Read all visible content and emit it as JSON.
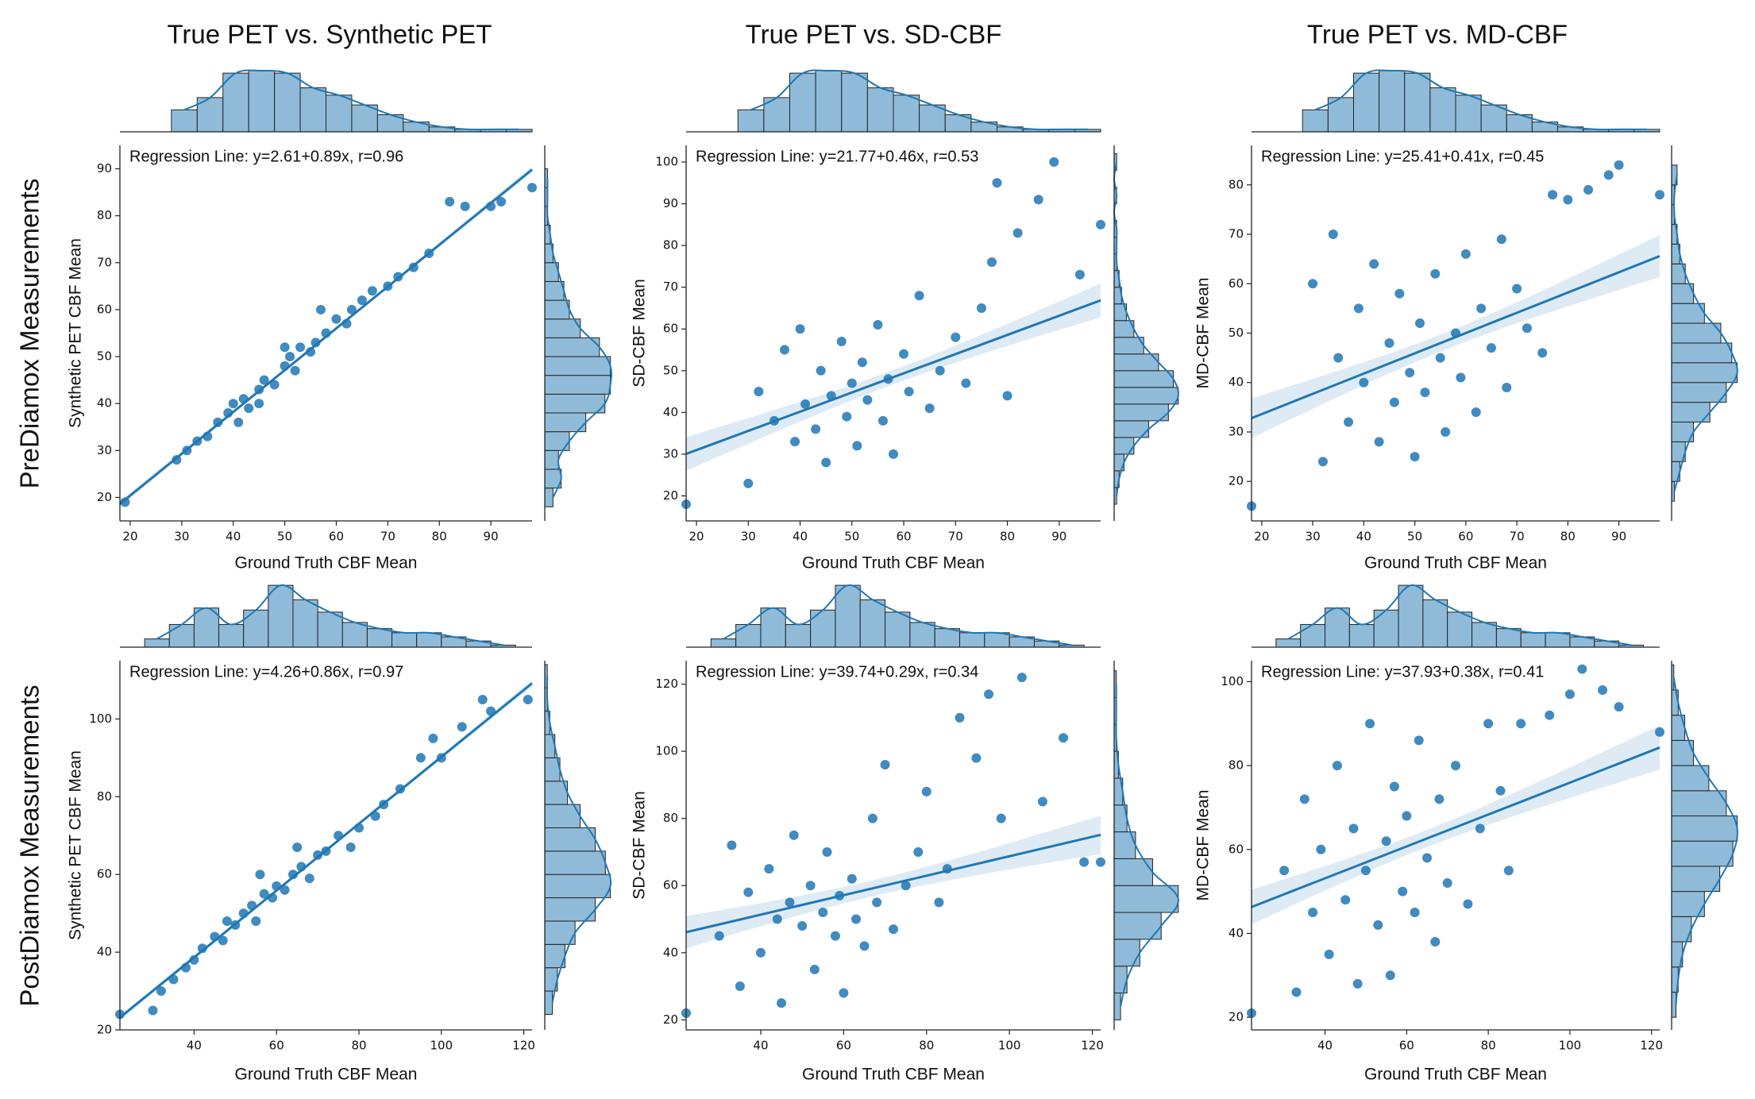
{
  "column_titles": [
    "True PET vs. Synthetic PET",
    "True PET vs. SD-CBF",
    "True PET vs. MD-CBF"
  ],
  "row_labels": [
    "PreDiamox Measurements",
    "PostDiamox  Measurements"
  ],
  "chart_data": [
    {
      "type": "scatter",
      "xlabel": "Ground Truth CBF Mean",
      "ylabel": "Synthetic PET CBF Mean",
      "annotation": "Regression Line: y=2.61+0.89x, r=0.96",
      "fit": {
        "intercept": 2.61,
        "slope": 0.89,
        "r": 0.96
      },
      "color": "#1f77b4",
      "hist_color": "#8fbbd9",
      "xlim": [
        18,
        98
      ],
      "ylim": [
        15,
        95
      ],
      "xticks": [
        20,
        30,
        40,
        50,
        60,
        70,
        80,
        90
      ],
      "yticks": [
        20,
        30,
        40,
        50,
        60,
        70,
        80,
        90
      ],
      "x": [
        19,
        29,
        31,
        33,
        35,
        37,
        39,
        40,
        42,
        43,
        45,
        46,
        48,
        50,
        51,
        52,
        53,
        55,
        56,
        58,
        60,
        62,
        63,
        65,
        67,
        70,
        72,
        75,
        78,
        82,
        85,
        90,
        92,
        98,
        50,
        45,
        57,
        41
      ],
      "y": [
        19,
        28,
        30,
        32,
        33,
        36,
        38,
        40,
        41,
        39,
        43,
        45,
        44,
        48,
        50,
        47,
        52,
        51,
        53,
        55,
        58,
        57,
        60,
        62,
        64,
        65,
        67,
        69,
        72,
        83,
        82,
        82,
        83,
        86,
        52,
        40,
        60,
        36
      ],
      "x_hist": {
        "bins": [
          28,
          33,
          38,
          43,
          48,
          53,
          58,
          63,
          68,
          73,
          78,
          83,
          88,
          93,
          98
        ],
        "counts": [
          9,
          14,
          24,
          25,
          24,
          18,
          15,
          11,
          7,
          4,
          2,
          1,
          1,
          1
        ]
      },
      "y_hist": {
        "bins": [
          18,
          22,
          26,
          30,
          34,
          38,
          42,
          46,
          50,
          54,
          58,
          62,
          66,
          70,
          74,
          78,
          82,
          86,
          90
        ],
        "counts": [
          3,
          6,
          5,
          9,
          15,
          22,
          24,
          24,
          20,
          13,
          9,
          7,
          5,
          3,
          2,
          1,
          1,
          1
        ]
      }
    },
    {
      "type": "scatter",
      "xlabel": "Ground Truth CBF Mean",
      "ylabel": "SD-CBF Mean",
      "annotation": "Regression Line: y=21.77+0.46x, r=0.53",
      "fit": {
        "intercept": 21.77,
        "slope": 0.46,
        "r": 0.53
      },
      "color": "#1f77b4",
      "hist_color": "#8fbbd9",
      "xlim": [
        18,
        98
      ],
      "ylim": [
        14,
        104
      ],
      "xticks": [
        20,
        30,
        40,
        50,
        60,
        70,
        80,
        90
      ],
      "yticks": [
        20,
        30,
        40,
        50,
        60,
        70,
        80,
        90,
        100
      ],
      "x": [
        18,
        30,
        32,
        35,
        37,
        39,
        40,
        41,
        43,
        44,
        45,
        46,
        48,
        49,
        50,
        51,
        52,
        53,
        55,
        56,
        57,
        58,
        60,
        61,
        63,
        65,
        67,
        70,
        72,
        75,
        77,
        78,
        80,
        82,
        86,
        89,
        94,
        98
      ],
      "y": [
        18,
        23,
        45,
        38,
        55,
        33,
        60,
        42,
        36,
        50,
        28,
        44,
        57,
        39,
        47,
        32,
        52,
        43,
        61,
        38,
        48,
        30,
        54,
        45,
        68,
        41,
        50,
        58,
        47,
        65,
        76,
        95,
        44,
        83,
        91,
        100,
        73,
        85
      ],
      "x_hist": {
        "bins": [
          28,
          33,
          38,
          43,
          48,
          53,
          58,
          63,
          68,
          73,
          78,
          83,
          88,
          93,
          98
        ],
        "counts": [
          9,
          14,
          24,
          25,
          24,
          18,
          15,
          11,
          7,
          4,
          2,
          1,
          1,
          1
        ]
      },
      "y_hist": {
        "bins": [
          18,
          22,
          26,
          30,
          34,
          38,
          42,
          46,
          50,
          54,
          58,
          62,
          66,
          70,
          74,
          78,
          82,
          86,
          90,
          94,
          98,
          102
        ],
        "counts": [
          1,
          2,
          4,
          8,
          14,
          22,
          26,
          24,
          18,
          12,
          8,
          5,
          3,
          2,
          1,
          1,
          1,
          0,
          1,
          0,
          1
        ]
      }
    },
    {
      "type": "scatter",
      "xlabel": "Ground Truth CBF Mean",
      "ylabel": "MD-CBF Mean",
      "annotation": "Regression Line: y=25.41+0.41x, r=0.45",
      "fit": {
        "intercept": 25.41,
        "slope": 0.41,
        "r": 0.45
      },
      "color": "#1f77b4",
      "hist_color": "#8fbbd9",
      "xlim": [
        18,
        98
      ],
      "ylim": [
        12,
        88
      ],
      "xticks": [
        20,
        30,
        40,
        50,
        60,
        70,
        80,
        90
      ],
      "yticks": [
        20,
        30,
        40,
        50,
        60,
        70,
        80
      ],
      "x": [
        18,
        30,
        32,
        34,
        35,
        37,
        39,
        40,
        42,
        43,
        45,
        46,
        47,
        49,
        50,
        51,
        52,
        54,
        55,
        56,
        58,
        59,
        60,
        62,
        63,
        65,
        67,
        68,
        70,
        72,
        75,
        77,
        80,
        84,
        88,
        90,
        98
      ],
      "y": [
        15,
        60,
        24,
        70,
        45,
        32,
        55,
        40,
        64,
        28,
        48,
        36,
        58,
        42,
        25,
        52,
        38,
        62,
        45,
        30,
        50,
        41,
        66,
        34,
        55,
        47,
        69,
        39,
        59,
        51,
        46,
        78,
        77,
        79,
        82,
        84,
        78
      ],
      "x_hist": {
        "bins": [
          28,
          33,
          38,
          43,
          48,
          53,
          58,
          63,
          68,
          73,
          78,
          83,
          88,
          93,
          98
        ],
        "counts": [
          9,
          14,
          24,
          25,
          24,
          18,
          15,
          11,
          7,
          4,
          2,
          1,
          1,
          1
        ]
      },
      "y_hist": {
        "bins": [
          16,
          20,
          24,
          28,
          32,
          36,
          40,
          44,
          48,
          52,
          56,
          60,
          64,
          68,
          72,
          76,
          80,
          84
        ],
        "counts": [
          1,
          3,
          5,
          8,
          14,
          20,
          24,
          22,
          18,
          12,
          8,
          5,
          3,
          2,
          1,
          1,
          2
        ]
      }
    },
    {
      "type": "scatter",
      "xlabel": "Ground Truth CBF Mean",
      "ylabel": "Synthetic PET CBF Mean",
      "annotation": "Regression Line: y=4.26+0.86x, r=0.97",
      "fit": {
        "intercept": 4.26,
        "slope": 0.86,
        "r": 0.97
      },
      "color": "#1f77b4",
      "hist_color": "#8fbbd9",
      "xlim": [
        22,
        122
      ],
      "ylim": [
        20,
        115
      ],
      "xticks": [
        40,
        60,
        80,
        100,
        120
      ],
      "yticks": [
        20,
        40,
        60,
        80,
        100
      ],
      "x": [
        22,
        30,
        32,
        35,
        38,
        40,
        42,
        45,
        47,
        50,
        52,
        54,
        55,
        57,
        59,
        60,
        62,
        64,
        66,
        68,
        70,
        72,
        75,
        78,
        80,
        84,
        86,
        90,
        95,
        98,
        100,
        105,
        110,
        112,
        121,
        65,
        48,
        56
      ],
      "y": [
        24,
        25,
        30,
        33,
        36,
        38,
        41,
        44,
        43,
        47,
        50,
        52,
        48,
        55,
        54,
        57,
        56,
        60,
        62,
        59,
        65,
        66,
        70,
        67,
        72,
        75,
        78,
        82,
        90,
        95,
        90,
        98,
        105,
        102,
        105,
        67,
        48,
        60
      ],
      "x_hist": {
        "bins": [
          28,
          34,
          40,
          46,
          52,
          58,
          64,
          70,
          76,
          82,
          88,
          94,
          100,
          106,
          112,
          118
        ],
        "counts": [
          4,
          11,
          19,
          11,
          18,
          30,
          23,
          17,
          12,
          9,
          7,
          7,
          5,
          3,
          1
        ]
      },
      "y_hist": {
        "bins": [
          24,
          30,
          36,
          42,
          48,
          54,
          60,
          66,
          72,
          78,
          84,
          90,
          96,
          102,
          108,
          114
        ],
        "counts": [
          3,
          5,
          8,
          12,
          20,
          26,
          24,
          20,
          14,
          9,
          6,
          4,
          2,
          1,
          1
        ]
      }
    },
    {
      "type": "scatter",
      "xlabel": "Ground Truth CBF Mean",
      "ylabel": "SD-CBF Mean",
      "annotation": "Regression Line: y=39.74+0.29x, r=0.34",
      "fit": {
        "intercept": 39.74,
        "slope": 0.29,
        "r": 0.34
      },
      "color": "#1f77b4",
      "hist_color": "#8fbbd9",
      "xlim": [
        22,
        122
      ],
      "ylim": [
        17,
        127
      ],
      "xticks": [
        40,
        60,
        80,
        100,
        120
      ],
      "yticks": [
        20,
        40,
        60,
        80,
        100,
        120
      ],
      "x": [
        22,
        30,
        33,
        35,
        37,
        40,
        42,
        44,
        45,
        47,
        48,
        50,
        52,
        53,
        55,
        56,
        58,
        59,
        60,
        62,
        63,
        65,
        67,
        68,
        70,
        72,
        75,
        78,
        80,
        83,
        85,
        88,
        92,
        95,
        98,
        103,
        108,
        113,
        118,
        122
      ],
      "y": [
        22,
        45,
        72,
        30,
        58,
        40,
        65,
        50,
        25,
        55,
        75,
        48,
        60,
        35,
        52,
        70,
        45,
        57,
        28,
        62,
        50,
        42,
        80,
        55,
        96,
        47,
        60,
        70,
        88,
        55,
        65,
        110,
        98,
        117,
        80,
        122,
        85,
        104,
        67,
        67
      ],
      "x_hist": {
        "bins": [
          28,
          34,
          40,
          46,
          52,
          58,
          64,
          70,
          76,
          82,
          88,
          94,
          100,
          106,
          112,
          118
        ],
        "counts": [
          4,
          11,
          19,
          11,
          18,
          30,
          23,
          17,
          12,
          9,
          7,
          7,
          5,
          3,
          1
        ]
      },
      "y_hist": {
        "bins": [
          20,
          28,
          36,
          44,
          52,
          60,
          68,
          76,
          84,
          92,
          100,
          108,
          116,
          124
        ],
        "counts": [
          3,
          6,
          12,
          22,
          30,
          18,
          10,
          6,
          4,
          2,
          1,
          1,
          1
        ]
      }
    },
    {
      "type": "scatter",
      "xlabel": "Ground Truth CBF Mean",
      "ylabel": "MD-CBF Mean",
      "annotation": "Regression Line: y=37.93+0.38x, r=0.41",
      "fit": {
        "intercept": 37.93,
        "slope": 0.38,
        "r": 0.41
      },
      "color": "#1f77b4",
      "hist_color": "#8fbbd9",
      "xlim": [
        22,
        122
      ],
      "ylim": [
        17,
        105
      ],
      "xticks": [
        40,
        60,
        80,
        100,
        120
      ],
      "yticks": [
        20,
        40,
        60,
        80,
        100
      ],
      "x": [
        22,
        30,
        33,
        35,
        37,
        39,
        41,
        43,
        45,
        47,
        48,
        50,
        51,
        53,
        55,
        56,
        57,
        59,
        60,
        62,
        63,
        65,
        67,
        68,
        70,
        72,
        75,
        78,
        80,
        83,
        85,
        88,
        95,
        100,
        103,
        108,
        112,
        122
      ],
      "y": [
        21,
        55,
        26,
        72,
        45,
        60,
        35,
        80,
        48,
        65,
        28,
        55,
        90,
        42,
        62,
        30,
        75,
        50,
        68,
        45,
        86,
        58,
        38,
        72,
        52,
        80,
        47,
        65,
        90,
        74,
        55,
        90,
        92,
        97,
        103,
        98,
        94,
        88
      ],
      "x_hist": {
        "bins": [
          28,
          34,
          40,
          46,
          52,
          58,
          64,
          70,
          76,
          82,
          88,
          94,
          100,
          106,
          112,
          118
        ],
        "counts": [
          4,
          11,
          19,
          11,
          18,
          30,
          23,
          17,
          12,
          9,
          7,
          7,
          5,
          3,
          1
        ]
      },
      "y_hist": {
        "bins": [
          20,
          26,
          32,
          38,
          44,
          50,
          56,
          62,
          68,
          74,
          80,
          86,
          92,
          98,
          104
        ],
        "counts": [
          2,
          3,
          5,
          9,
          15,
          22,
          28,
          30,
          25,
          17,
          10,
          6,
          3,
          1
        ]
      }
    }
  ]
}
